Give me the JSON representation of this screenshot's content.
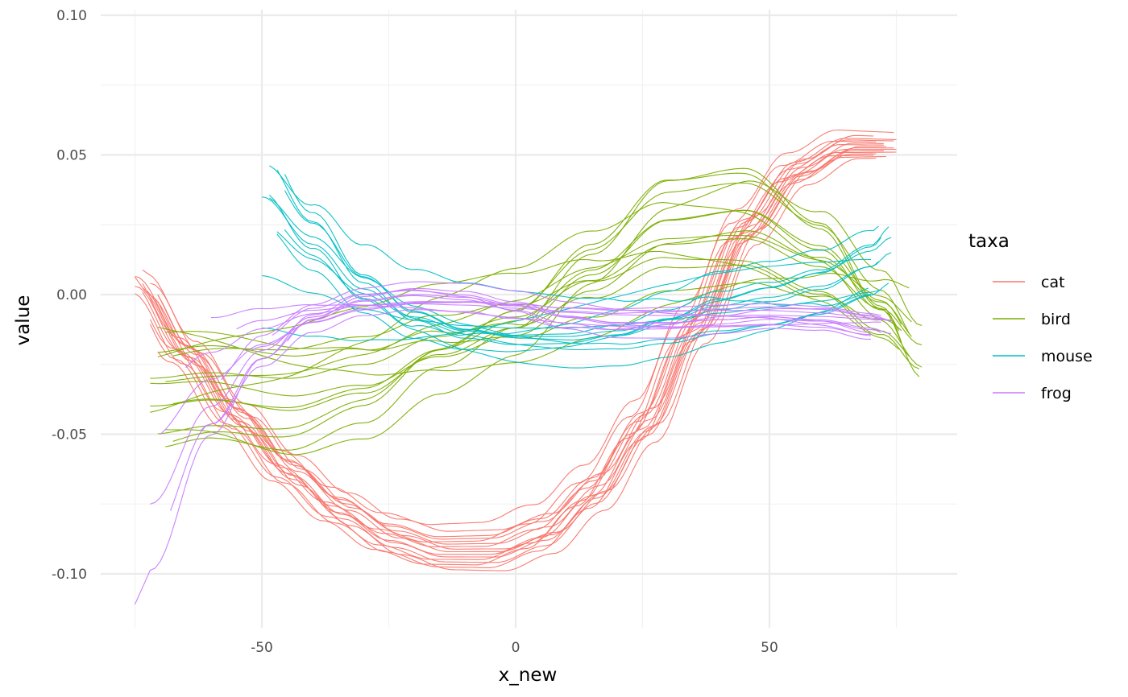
{
  "chart_data": {
    "type": "line",
    "title": "",
    "xlabel": "x_new",
    "ylabel": "value",
    "xlim": [
      -78,
      87
    ],
    "ylim": [
      -0.12,
      0.105
    ],
    "x_ticks": [
      -50,
      0,
      50
    ],
    "x_tick_labels": [
      "-50",
      "0",
      "50"
    ],
    "y_ticks": [
      -0.1,
      -0.05,
      0,
      0.05,
      0.1
    ],
    "y_tick_labels": [
      "-0.10",
      "-0.05",
      "0.00",
      "0.05",
      "0.10"
    ],
    "grid": true,
    "legend": {
      "title": "taxa",
      "placement": "right"
    },
    "series": [
      {
        "name": "cat",
        "color": "#F8766D",
        "template": [
          [
            -75,
            0.003
          ],
          [
            -65,
            -0.022
          ],
          [
            -55,
            -0.045
          ],
          [
            -45,
            -0.064
          ],
          [
            -35,
            -0.078
          ],
          [
            -25,
            -0.088
          ],
          [
            -15,
            -0.093
          ],
          [
            -5,
            -0.093
          ],
          [
            5,
            -0.087
          ],
          [
            15,
            -0.072
          ],
          [
            25,
            -0.048
          ],
          [
            35,
            -0.013
          ],
          [
            45,
            0.022
          ],
          [
            55,
            0.043
          ],
          [
            65,
            0.052
          ],
          [
            75,
            0.052
          ]
        ],
        "curves": [
          {
            "dy": 0.0,
            "dx": 0.0
          },
          {
            "dy": 0.003,
            "dx": -1.0
          },
          {
            "dy": -0.003,
            "dx": 1.0
          },
          {
            "dy": 0.006,
            "dx": 0.5
          },
          {
            "dy": -0.005,
            "dx": -0.5
          },
          {
            "dy": 0.009,
            "dx": 2.0
          },
          {
            "dy": -0.002,
            "dx": -2.0
          },
          {
            "dy": 0.004,
            "dx": 1.5
          },
          {
            "dy": -0.006,
            "dx": 2.5
          },
          {
            "dy": 0.012,
            "dx": -1.5
          },
          {
            "dy": 0.002,
            "dx": 3.0
          },
          {
            "dy": -0.004,
            "dx": -3.0
          },
          {
            "dy": 0.007,
            "dx": 0.0
          },
          {
            "dy": -0.001,
            "dx": 1.0
          },
          {
            "dy": 0.005,
            "dx": -2.5
          },
          {
            "dy": 0.001,
            "dx": 2.0
          }
        ]
      },
      {
        "name": "bird",
        "color": "#7CAE00",
        "template": [
          [
            -72,
            -0.03
          ],
          [
            -60,
            -0.028
          ],
          [
            -45,
            -0.03
          ],
          [
            -30,
            -0.025
          ],
          [
            -15,
            -0.015
          ],
          [
            0,
            -0.008
          ],
          [
            15,
            0.005
          ],
          [
            30,
            0.018
          ],
          [
            45,
            0.02
          ],
          [
            60,
            0.01
          ],
          [
            72,
            -0.005
          ],
          [
            80,
            -0.018
          ]
        ],
        "curves": [
          {
            "dy": 0.0,
            "amp": 1.0
          },
          {
            "dy": 0.01,
            "amp": 1.4
          },
          {
            "dy": -0.012,
            "amp": 0.8
          },
          {
            "dy": 0.005,
            "amp": 1.8
          },
          {
            "dy": -0.006,
            "amp": 1.2
          },
          {
            "dy": 0.015,
            "amp": 0.6
          },
          {
            "dy": -0.015,
            "amp": 1.6
          },
          {
            "dy": 0.008,
            "amp": 0.9
          },
          {
            "dy": -0.003,
            "amp": 1.3
          },
          {
            "dy": 0.012,
            "amp": 1.1
          },
          {
            "dy": -0.009,
            "amp": 0.7
          },
          {
            "dy": 0.003,
            "amp": 1.5
          },
          {
            "dy": -0.018,
            "amp": 1.0
          },
          {
            "dy": 0.018,
            "amp": 0.5
          },
          {
            "dy": 0.001,
            "amp": 2.0
          }
        ]
      },
      {
        "name": "mouse",
        "color": "#00BFC4",
        "template": [
          [
            -50,
            0.035
          ],
          [
            -40,
            0.018
          ],
          [
            -30,
            0.002
          ],
          [
            -20,
            -0.008
          ],
          [
            -10,
            -0.013
          ],
          [
            0,
            -0.015
          ],
          [
            10,
            -0.015
          ],
          [
            20,
            -0.013
          ],
          [
            30,
            -0.009
          ],
          [
            40,
            -0.004
          ],
          [
            50,
            -0.001
          ],
          [
            60,
            0.003
          ],
          [
            70,
            0.01
          ],
          [
            74,
            0.015
          ]
        ],
        "curves": [
          {
            "dy": 0.0,
            "amp": 1.0
          },
          {
            "dy": 0.012,
            "amp": 1.3
          },
          {
            "dy": -0.01,
            "amp": 0.6
          },
          {
            "dy": 0.006,
            "amp": 1.5
          },
          {
            "dy": -0.004,
            "amp": 0.3
          },
          {
            "dy": 0.018,
            "amp": 1.1
          },
          {
            "dy": -0.008,
            "amp": 0.9
          },
          {
            "dy": 0.003,
            "amp": 1.2
          },
          {
            "dy": -0.015,
            "amp": 0.2
          },
          {
            "dy": 0.009,
            "amp": 0.8
          },
          {
            "dy": -0.002,
            "amp": 1.4
          },
          {
            "dy": 0.015,
            "amp": 0.7
          }
        ]
      },
      {
        "name": "frog",
        "color": "#C77CFF",
        "template": [
          [
            -72,
            -0.075
          ],
          [
            -60,
            -0.04
          ],
          [
            -50,
            -0.02
          ],
          [
            -40,
            -0.008
          ],
          [
            -30,
            -0.002
          ],
          [
            -20,
            0.0
          ],
          [
            -10,
            -0.001
          ],
          [
            0,
            -0.004
          ],
          [
            10,
            -0.008
          ],
          [
            20,
            -0.01
          ],
          [
            30,
            -0.01
          ],
          [
            40,
            -0.009
          ],
          [
            50,
            -0.008
          ],
          [
            60,
            -0.009
          ],
          [
            70,
            -0.012
          ],
          [
            74,
            -0.014
          ]
        ],
        "curves": [
          {
            "dy": 0.0,
            "amp": 1.0,
            "x0": -72
          },
          {
            "dy": 0.004,
            "amp": 0.6,
            "x0": -70
          },
          {
            "dy": -0.004,
            "amp": 1.4,
            "x0": -75
          },
          {
            "dy": 0.002,
            "amp": 0.4,
            "x0": -65
          },
          {
            "dy": -0.002,
            "amp": 1.2,
            "x0": -68
          },
          {
            "dy": 0.006,
            "amp": 0.8,
            "x0": -58
          },
          {
            "dy": -0.006,
            "amp": 1.1,
            "x0": -62
          },
          {
            "dy": 0.001,
            "amp": 0.3,
            "x0": -55
          },
          {
            "dy": 0.003,
            "amp": 0.9,
            "x0": -48
          },
          {
            "dy": -0.003,
            "amp": 0.7,
            "x0": -52
          },
          {
            "dy": 0.005,
            "amp": 0.2,
            "x0": -60
          },
          {
            "dy": -0.001,
            "amp": 1.3,
            "x0": -45
          }
        ]
      }
    ]
  }
}
